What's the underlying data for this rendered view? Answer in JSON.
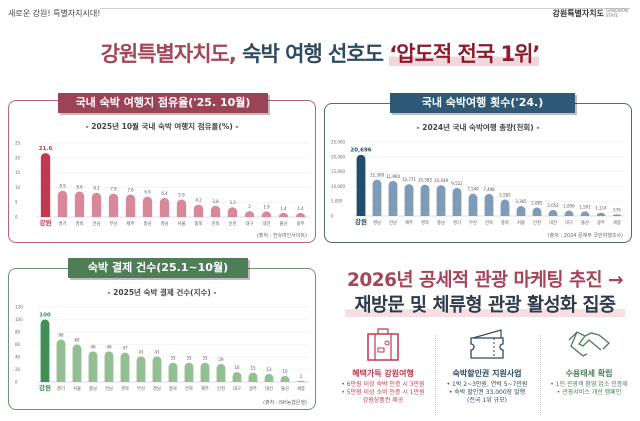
{
  "header": {
    "slogan": "새로운 강원! 특별자치시대!",
    "logo": "강원특별자치도",
    "logo_sub": "GANGWON STATE"
  },
  "title": {
    "part1": "강원특별자치도,",
    "part2": " 숙박 여행 선호도 ",
    "part3": "‘압도적 전국 1위’"
  },
  "colors": {
    "red": "#a3465a",
    "blue": "#2e5a78",
    "green": "#4e7d57"
  },
  "chart_data": [
    {
      "type": "bar",
      "tab": "국내 숙박 여행지 점유율('25. 10월)",
      "title": "- 2025년 10월 국내 숙박 여행지 점유율(%) -",
      "source": "(출처 : 컨슈머인사이트)",
      "ylim": [
        0,
        25
      ],
      "yticks": [
        0,
        5,
        10,
        15,
        20,
        25
      ],
      "grid": true,
      "categories": [
        "강원",
        "경기",
        "경북",
        "전남",
        "부산",
        "제주",
        "충남",
        "경남",
        "서울",
        "충북",
        "전북",
        "인천",
        "대구",
        "대전",
        "울산",
        "광주"
      ],
      "values": [
        21.6,
        8.9,
        8.6,
        8.2,
        7.9,
        7.6,
        6.9,
        6.4,
        5.9,
        4.2,
        3.8,
        3.3,
        2,
        1.9,
        1.4,
        1.4
      ],
      "highlight_color": "#c0394f",
      "bar_color": "#d8889a"
    },
    {
      "type": "bar",
      "tab": "국내 숙박여행 횟수('24.)",
      "title": "- 2024년 국내 숙박여행 총량(천회) -",
      "source": "(출처 : 2024 문체부 국민여행조사)",
      "ylim": [
        0,
        25000
      ],
      "yticks": [
        0,
        5000,
        10000,
        15000,
        20000,
        25000
      ],
      "grid": true,
      "categories": [
        "강원",
        "경남",
        "전남",
        "제주",
        "경북",
        "충남",
        "경기",
        "부산",
        "전북",
        "충북",
        "서울",
        "인천",
        "대전",
        "대구",
        "울산",
        "광주",
        "세종"
      ],
      "values": [
        20696,
        12308,
        11860,
        10771,
        10585,
        10449,
        9522,
        7549,
        7498,
        5582,
        3365,
        2885,
        2053,
        1856,
        1591,
        1114,
        576
      ],
      "highlight_color": "#1f4e6e",
      "bar_color": "#7e9cb7"
    },
    {
      "type": "bar",
      "tab": "숙박 결제 건수(25.1~10월)",
      "title": "- 2025년 숙박 결제 건수(지수) -",
      "source": "(출처 : NH농협은행)",
      "ylim": [
        0,
        120
      ],
      "yticks": [
        0,
        20,
        40,
        60,
        80,
        100,
        120
      ],
      "grid": true,
      "categories": [
        "강원",
        "경기",
        "서울",
        "충남",
        "전남",
        "경북",
        "부산",
        "경남",
        "충북",
        "전북",
        "제주",
        "인천",
        "대구",
        "광주",
        "대전",
        "울산",
        "세종"
      ],
      "values": [
        100,
        68,
        60,
        49,
        49,
        47,
        41,
        41,
        31,
        31,
        31,
        29,
        16,
        15,
        13,
        10,
        2
      ],
      "highlight_color": "#3f8f57",
      "bar_color": "#93bf93"
    }
  ],
  "plan": {
    "line1": "2026년 공세적 관광 마케팅 추진 →",
    "line2": "재방문 및 체류형 관광 활성화 집중",
    "items": [
      {
        "icon": "suitcase-icon",
        "title": "혜택가득 강원여행",
        "color": "#c0394f",
        "bullets": [
          "• 6만원 이상 숙박 인증 시 3만원",
          "• 5만원 이상 소비 인증 시 1만원",
          "강원상품권 제공"
        ]
      },
      {
        "icon": "ticket-icon",
        "title": "숙박할인권 지원사업",
        "color": "#2e4a60",
        "bullets": [
          "• 1박 2~3만원, 연박 5~7만원",
          "• 숙박 할인권 33,000장 발행",
          "(전국 1위 규모)"
        ]
      },
      {
        "icon": "handshake-icon",
        "title": "수용태세 확립",
        "color": "#4e7d57",
        "bullets": [
          "• 1인 관광객 환영 업소 인증제",
          "• 관광서비스 개선 캠페인"
        ]
      }
    ]
  }
}
